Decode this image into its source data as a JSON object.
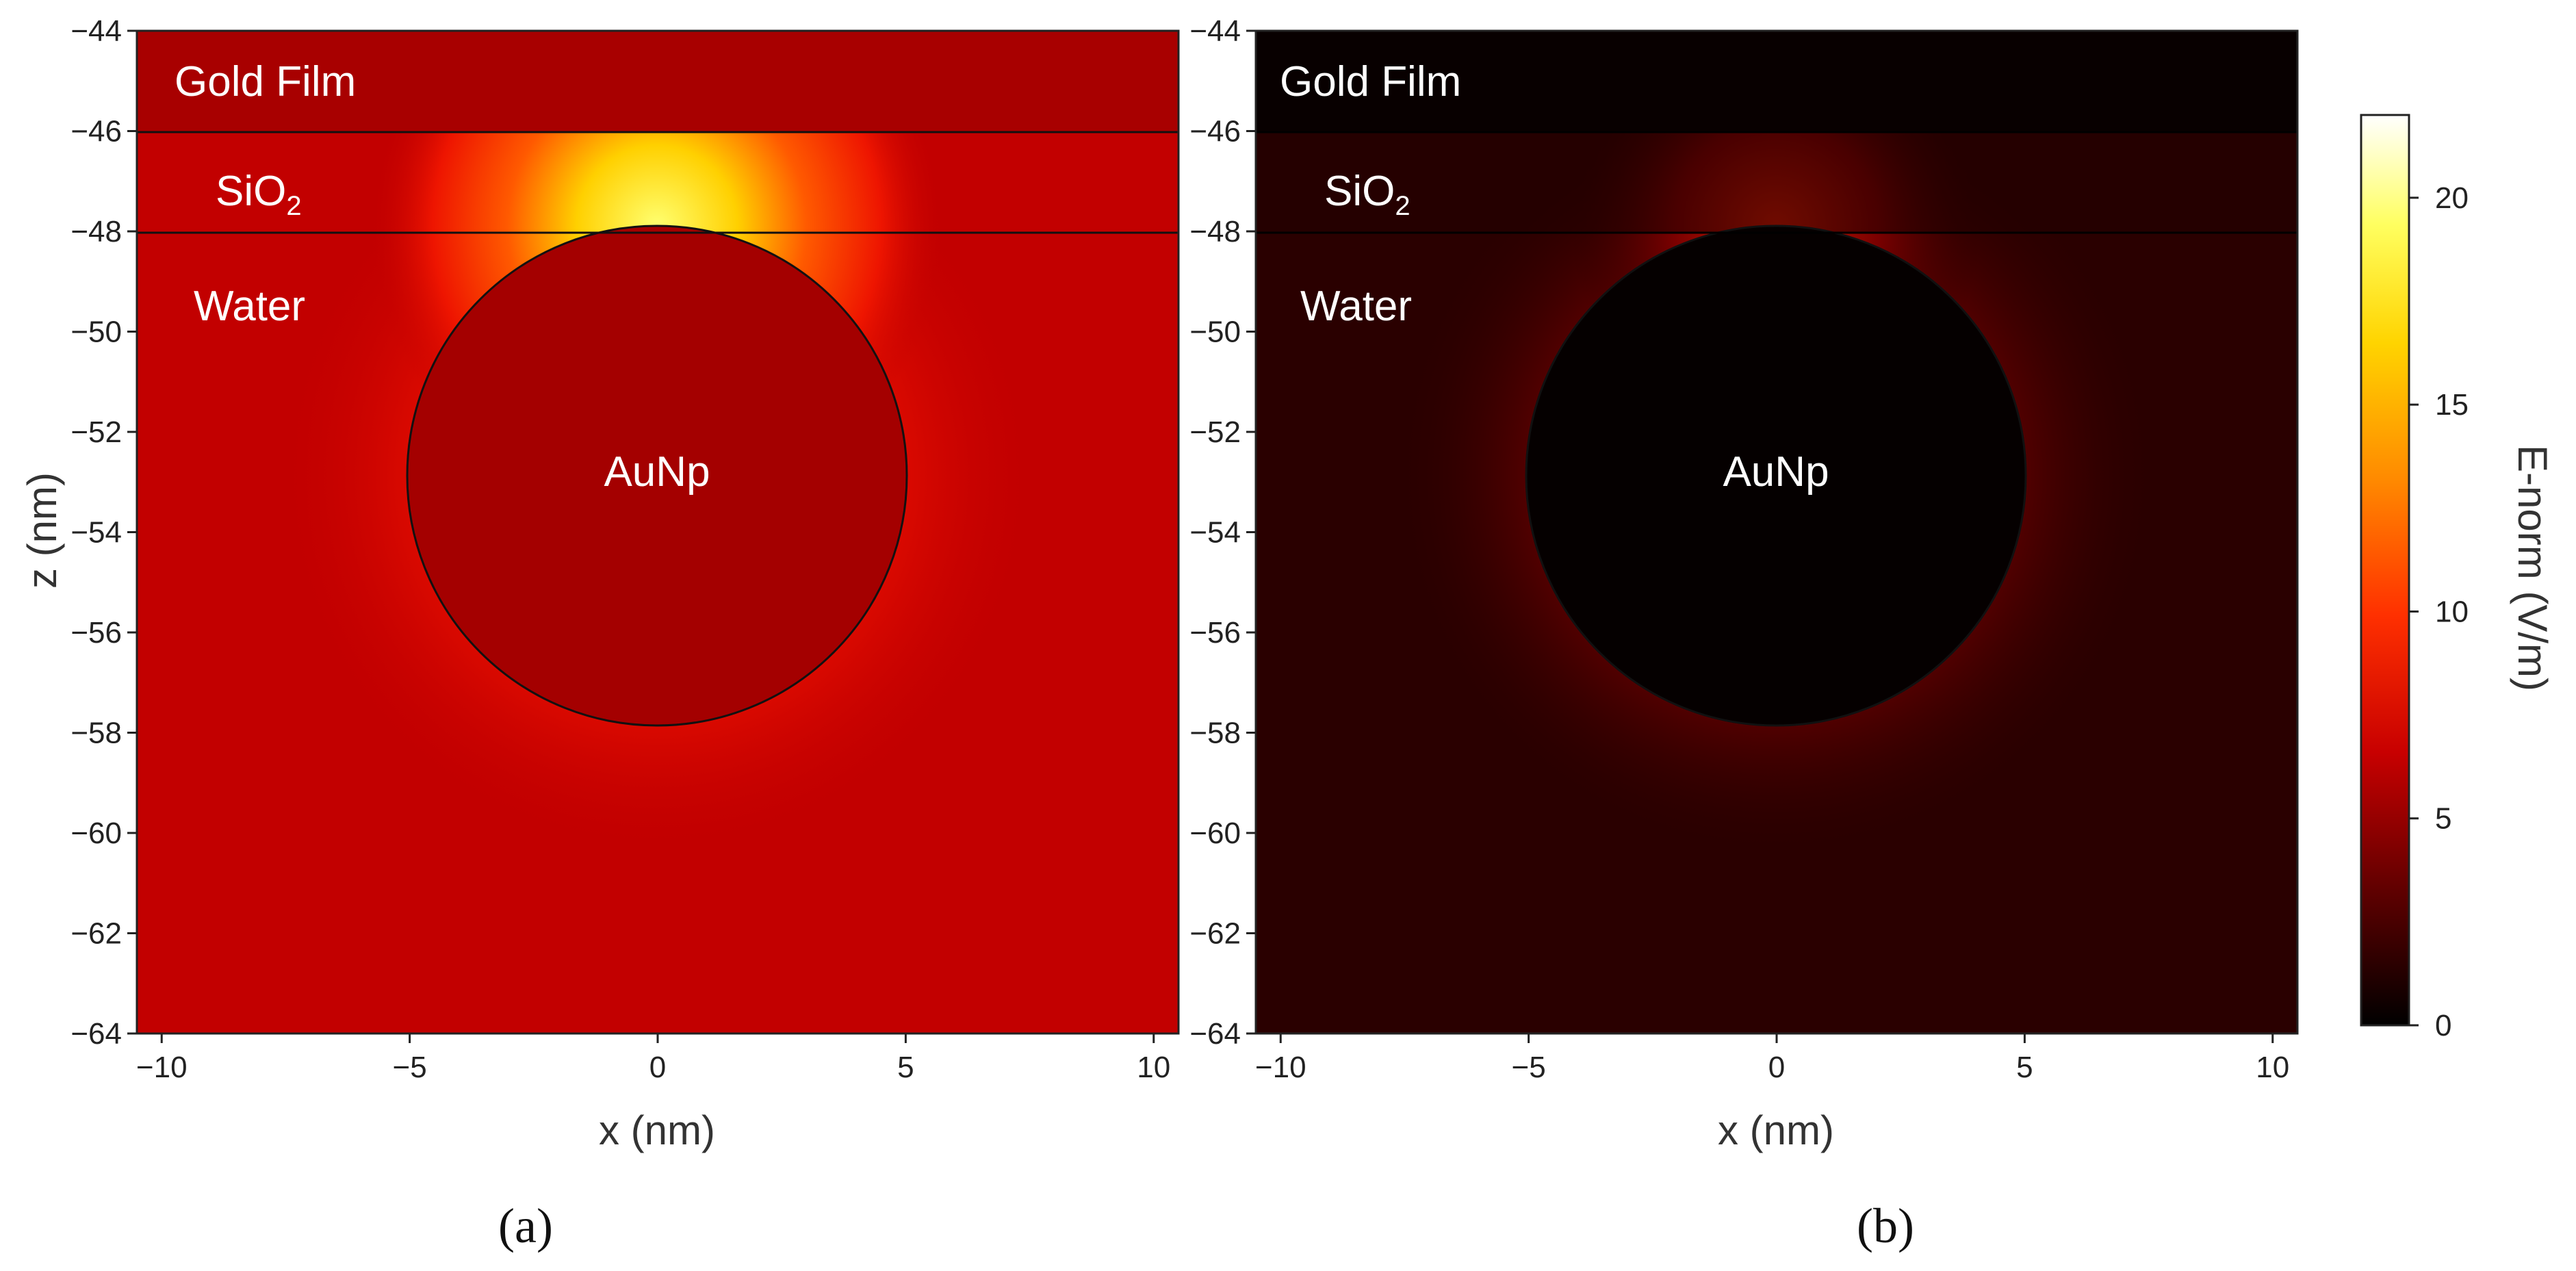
{
  "chart_data": [
    {
      "type": "heatmap",
      "panel_label": "(a)",
      "xlabel": "x (nm)",
      "ylabel": "z (nm)",
      "xlim": [
        -10.5,
        10.5
      ],
      "ylim": [
        -64,
        -44
      ],
      "x_ticks": [
        -10,
        -5,
        0,
        5,
        10
      ],
      "y_ticks": [
        -44,
        -46,
        -48,
        -50,
        -52,
        -54,
        -56,
        -58,
        -60,
        -62,
        -64
      ],
      "regions": [
        {
          "name": "Gold Film",
          "z_range": [
            -46,
            -44
          ]
        },
        {
          "name": "SiO",
          "subscript": "2",
          "z_range": [
            -48,
            -46
          ]
        },
        {
          "name": "Water",
          "z_range": [
            -64,
            -48
          ]
        },
        {
          "name": "AuNp",
          "shape": "circle",
          "center": [
            0,
            -53
          ],
          "radius": 5
        }
      ],
      "colors": {
        "background": "#c20000",
        "gold_film": "#a80000",
        "particle": "#a40000",
        "hotspot": "#ffff5a"
      }
    },
    {
      "type": "heatmap",
      "panel_label": "(b)",
      "xlabel": "x (nm)",
      "ylabel": "",
      "xlim": [
        -10.5,
        10.5
      ],
      "ylim": [
        -64,
        -44
      ],
      "x_ticks": [
        -10,
        -5,
        0,
        5,
        10
      ],
      "y_ticks": [
        -44,
        -46,
        -48,
        -50,
        -52,
        -54,
        -56,
        -58,
        -60,
        -62,
        -64
      ],
      "regions": [
        {
          "name": "Gold Film",
          "z_range": [
            -46,
            -44
          ]
        },
        {
          "name": "SiO",
          "subscript": "2",
          "z_range": [
            -48,
            -46
          ]
        },
        {
          "name": "Water",
          "z_range": [
            -64,
            -48
          ]
        },
        {
          "name": "AuNp",
          "shape": "circle",
          "center": [
            0,
            -53
          ],
          "radius": 5
        }
      ],
      "colors": {
        "background": "#2a0000",
        "gold_film": "#080000",
        "particle": "#050000",
        "hotspot": "#c01000"
      }
    }
  ],
  "colorbar": {
    "label": "E-norm (V/m)",
    "ticks": [
      0,
      5,
      10,
      15,
      20
    ],
    "range": [
      0,
      22
    ],
    "colormap": [
      "#000000",
      "#5a0000",
      "#c80000",
      "#ff3000",
      "#ff8a00",
      "#ffd400",
      "#ffff60",
      "#ffffff"
    ]
  }
}
